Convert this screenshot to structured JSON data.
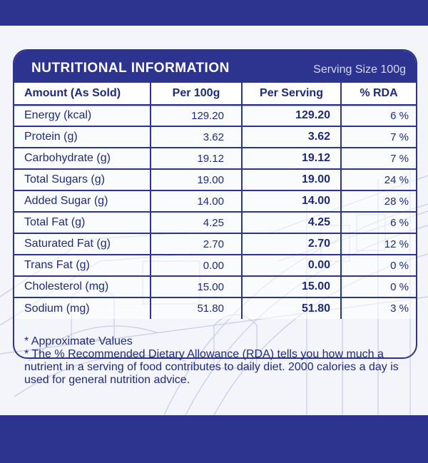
{
  "header": {
    "title": "NUTRITIONAL INFORMATION",
    "serving": "Serving  Size 100g"
  },
  "table": {
    "columns": [
      "Amount (As Sold)",
      "Per 100g",
      "Per Serving",
      "% RDA"
    ],
    "rows": [
      {
        "nutrient": "Energy (kcal)",
        "per100": "129.20",
        "perServing": "129.20",
        "rda": "6 %"
      },
      {
        "nutrient": "Protein (g)",
        "per100": "3.62",
        "perServing": "3.62",
        "rda": "7 %"
      },
      {
        "nutrient": "Carbohydrate (g)",
        "per100": "19.12",
        "perServing": "19.12",
        "rda": "7 %"
      },
      {
        "nutrient": "Total Sugars (g)",
        "per100": "19.00",
        "perServing": "19.00",
        "rda": "24 %"
      },
      {
        "nutrient": "Added Sugar (g)",
        "per100": "14.00",
        "perServing": "14.00",
        "rda": "28 %"
      },
      {
        "nutrient": "Total Fat (g)",
        "per100": "4.25",
        "perServing": "4.25",
        "rda": "6 %"
      },
      {
        "nutrient": "Saturated Fat (g)",
        "per100": "2.70",
        "perServing": "2.70",
        "rda": "12 %"
      },
      {
        "nutrient": "Trans Fat (g)",
        "per100": "0.00",
        "perServing": "0.00",
        "rda": "0 %"
      },
      {
        "nutrient": "Cholesterol (mg)",
        "per100": "15.00",
        "perServing": "15.00",
        "rda": "0 %"
      },
      {
        "nutrient": "Sodium (mg)",
        "per100": "51.80",
        "perServing": "51.80",
        "rda": "3 %"
      }
    ]
  },
  "notes": {
    "approx": "* Approximate Values",
    "rda_note": "* The % Recommended Dietary Allowance (RDA) tells you how much a nutrient in a serving of food contributes to daily diet. 2000 calories a day is used for general nutrition advice."
  },
  "colors": {
    "brand": "#2c3490",
    "text": "#1f2a7a",
    "panel": "#f4f5fb"
  }
}
